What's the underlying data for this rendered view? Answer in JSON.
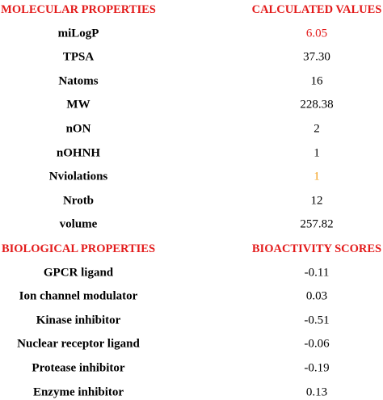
{
  "table": {
    "sections": [
      {
        "header": [
          "MOLECULAR PROPERTIES",
          "CALCULATED VALUES"
        ],
        "rows": [
          {
            "property": "miLogP",
            "value": "6.05",
            "color": "#e31b1b"
          },
          {
            "property": "TPSA",
            "value": "37.30"
          },
          {
            "property": "Natoms",
            "value": "16"
          },
          {
            "property": "MW",
            "value": "228.38"
          },
          {
            "property": "nON",
            "value": "2"
          },
          {
            "property": "nOHNH",
            "value": "1"
          },
          {
            "property": "Nviolations",
            "value": "1",
            "color": "#f39c12"
          },
          {
            "property": "Nrotb",
            "value": "12"
          },
          {
            "property": "volume",
            "value": "257.82"
          }
        ]
      },
      {
        "header": [
          "BIOLOGICAL PROPERTIES",
          "BIOACTIVITY SCORES"
        ],
        "rows": [
          {
            "property": "GPCR ligand",
            "value": "-0.11"
          },
          {
            "property": "Ion channel modulator",
            "value": "0.03"
          },
          {
            "property": "Kinase inhibitor",
            "value": "-0.51"
          },
          {
            "property": "Nuclear receptor ligand",
            "value": "-0.06"
          },
          {
            "property": "Protease inhibitor",
            "value": "-0.19"
          },
          {
            "property": "Enzyme inhibitor",
            "value": "0.13"
          }
        ]
      }
    ]
  }
}
